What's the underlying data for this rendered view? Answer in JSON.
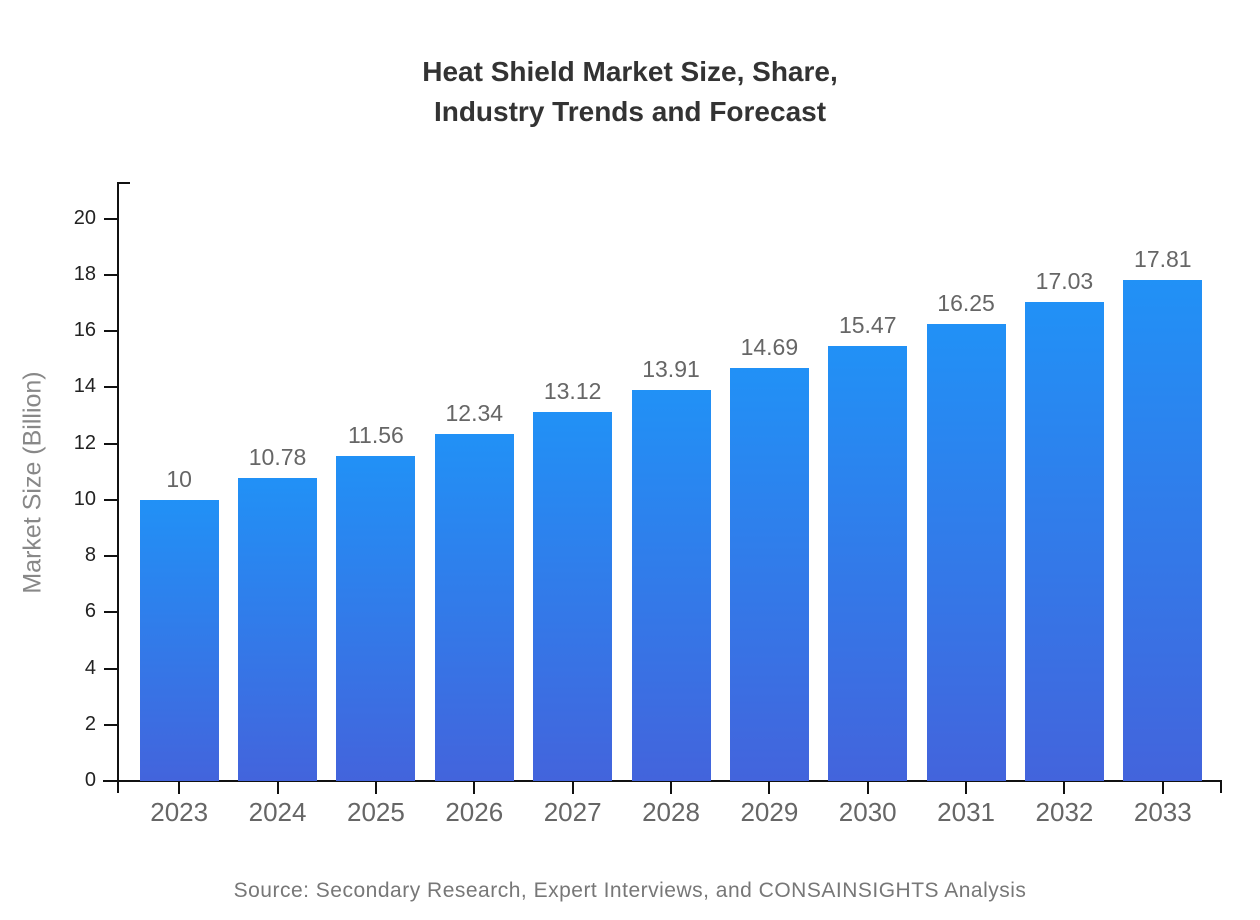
{
  "header": {
    "title": "Heat Shield Market Size, Share,\nIndustry Trends and Forecast"
  },
  "footer": {
    "source": "Source: Secondary Research, Expert Interviews, and CONSAINSIGHTS Analysis"
  },
  "chart_data": {
    "type": "bar",
    "title": "Heat Shield Market Size, Share, Industry Trends and Forecast",
    "categories": [
      "2023",
      "2024",
      "2025",
      "2026",
      "2027",
      "2028",
      "2029",
      "2030",
      "2031",
      "2032",
      "2033"
    ],
    "values": [
      10,
      10.78,
      11.56,
      12.34,
      13.12,
      13.91,
      14.69,
      15.47,
      16.25,
      17.03,
      17.81
    ],
    "value_labels": [
      "10",
      "10.78",
      "11.56",
      "12.34",
      "13.12",
      "13.91",
      "14.69",
      "15.47",
      "16.25",
      "17.03",
      "17.81"
    ],
    "xlabel": "",
    "ylabel": "Market Size (Billion)",
    "ylim": [
      0,
      21.3
    ],
    "yticks": [
      0,
      2,
      4,
      6,
      8,
      10,
      12,
      14,
      16,
      18,
      20
    ],
    "grid": false,
    "legend": false,
    "colors": {
      "bar_gradient_top": "#2191f6",
      "bar_gradient_bottom": "#4364dc",
      "axis": "#111111",
      "title_text": "#333333",
      "tick_text": "#222222",
      "category_text": "#666666",
      "value_text": "#666666",
      "axis_title_text": "#888888",
      "source_text": "#777777"
    }
  }
}
